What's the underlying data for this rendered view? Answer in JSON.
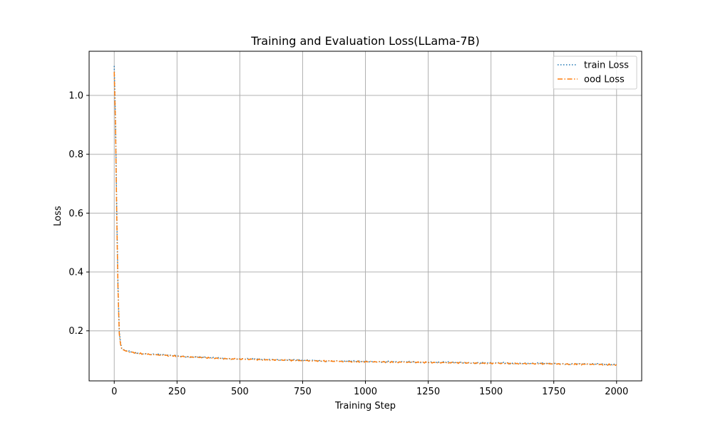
{
  "chart_data": {
    "type": "line",
    "title": "Training and Evaluation Loss(LLama-7B)",
    "xlabel": "Training Step",
    "ylabel": "Loss",
    "xlim": [
      -100,
      2100
    ],
    "ylim": [
      0.03,
      1.15
    ],
    "xticks": [
      0,
      250,
      500,
      750,
      1000,
      1250,
      1500,
      1750,
      2000
    ],
    "yticks": [
      0.2,
      0.4,
      0.6,
      0.8,
      1.0
    ],
    "xtick_labels": [
      "0",
      "250",
      "500",
      "750",
      "1000",
      "1250",
      "1500",
      "1750",
      "2000"
    ],
    "ytick_labels": [
      "0.2",
      "0.4",
      "0.6",
      "0.8",
      "1.0"
    ],
    "grid": true,
    "legend_position": "top-right",
    "series": [
      {
        "name": "train Loss",
        "color": "#1f77b4",
        "linestyle": "dotted",
        "x": [
          0,
          5,
          10,
          15,
          20,
          25,
          30,
          40,
          50,
          75,
          100,
          150,
          200,
          250,
          300,
          350,
          400,
          450,
          500,
          600,
          700,
          800,
          900,
          1000,
          1100,
          1200,
          1300,
          1400,
          1500,
          1600,
          1700,
          1800,
          1900,
          2000
        ],
        "y": [
          1.1,
          0.92,
          0.6,
          0.35,
          0.2,
          0.16,
          0.14,
          0.135,
          0.132,
          0.128,
          0.124,
          0.12,
          0.118,
          0.115,
          0.112,
          0.11,
          0.108,
          0.106,
          0.105,
          0.103,
          0.101,
          0.099,
          0.097,
          0.096,
          0.095,
          0.094,
          0.093,
          0.092,
          0.091,
          0.09,
          0.089,
          0.088,
          0.087,
          0.086
        ]
      },
      {
        "name": "ood Loss",
        "color": "#ff7f0e",
        "linestyle": "dashdot",
        "x": [
          0,
          5,
          10,
          15,
          20,
          25,
          30,
          40,
          50,
          75,
          100,
          150,
          200,
          250,
          300,
          350,
          400,
          450,
          500,
          600,
          700,
          800,
          900,
          1000,
          1100,
          1200,
          1300,
          1400,
          1500,
          1600,
          1700,
          1800,
          1900,
          2000
        ],
        "y": [
          1.08,
          0.9,
          0.58,
          0.34,
          0.19,
          0.155,
          0.138,
          0.134,
          0.131,
          0.127,
          0.123,
          0.119,
          0.117,
          0.114,
          0.111,
          0.109,
          0.107,
          0.105,
          0.104,
          0.102,
          0.1,
          0.098,
          0.096,
          0.095,
          0.094,
          0.093,
          0.092,
          0.091,
          0.09,
          0.089,
          0.088,
          0.087,
          0.086,
          0.085
        ]
      }
    ]
  }
}
